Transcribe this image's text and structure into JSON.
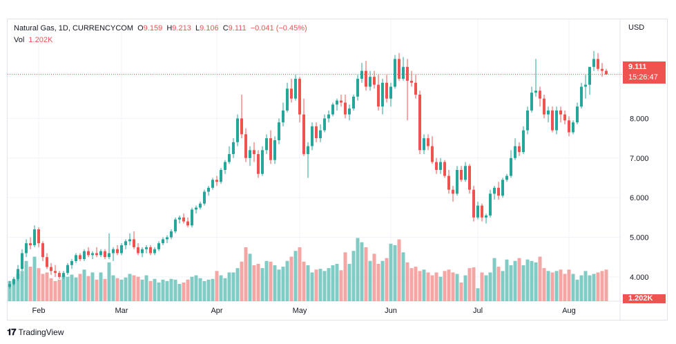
{
  "legend": {
    "symbol": "Natural Gas, 1D, CURRENCYCOM",
    "open_label": "O",
    "open": "9.159",
    "high_label": "H",
    "high": "9.213",
    "low_label": "L",
    "low": "9.106",
    "close_label": "C",
    "close": "9.111",
    "change": "−0.041 (−0.45%)",
    "vol_label": "Vol",
    "vol": "1.202K"
  },
  "axis_currency": "USD",
  "price_tag": {
    "price": "9.111",
    "countdown": "15:26:47"
  },
  "volume_tag": "1.202K",
  "branding": "TradingView",
  "colors": {
    "up": "#26a69a",
    "down": "#ef5350",
    "up_volume": "#80cbc4",
    "down_volume": "#f4a6a4",
    "grid": "#f0f3fa"
  },
  "chart_data": {
    "type": "candlestick",
    "title": "Natural Gas, 1D, CURRENCYCOM",
    "y_ticks": [
      "4.000",
      "5.000",
      "6.000",
      "7.000",
      "8.000"
    ],
    "y_tick_values": [
      4,
      5,
      6,
      7,
      8
    ],
    "ylim": [
      2.9,
      10.5
    ],
    "x_ticks": [
      {
        "label": "Feb",
        "index": 7
      },
      {
        "label": "Mar",
        "index": 27
      },
      {
        "label": "Apr",
        "index": 50
      },
      {
        "label": "May",
        "index": 70
      },
      {
        "label": "Jun",
        "index": 92
      },
      {
        "label": "Jul",
        "index": 113
      },
      {
        "label": "Aug",
        "index": 135
      }
    ],
    "last_price": 9.111,
    "ohlc": [
      [
        3.75,
        3.9,
        3.7,
        3.82
      ],
      [
        3.82,
        4.0,
        3.78,
        3.95
      ],
      [
        3.95,
        4.3,
        3.9,
        4.2
      ],
      [
        4.2,
        4.7,
        4.15,
        4.6
      ],
      [
        4.6,
        4.95,
        4.5,
        4.85
      ],
      [
        4.85,
        5.0,
        4.7,
        4.8
      ],
      [
        4.8,
        5.3,
        4.75,
        5.2
      ],
      [
        5.2,
        5.25,
        4.75,
        4.85
      ],
      [
        4.85,
        4.9,
        4.4,
        4.5
      ],
      [
        4.5,
        4.6,
        4.2,
        4.25
      ],
      [
        4.25,
        4.35,
        4.05,
        4.15
      ],
      [
        4.15,
        4.3,
        4.0,
        4.1
      ],
      [
        4.1,
        4.15,
        3.95,
        4.0
      ],
      [
        4.0,
        4.15,
        3.95,
        4.1
      ],
      [
        4.1,
        4.35,
        4.05,
        4.3
      ],
      [
        4.3,
        4.45,
        4.2,
        4.4
      ],
      [
        4.4,
        4.6,
        4.35,
        4.55
      ],
      [
        4.55,
        4.6,
        4.4,
        4.45
      ],
      [
        4.45,
        4.7,
        4.4,
        4.65
      ],
      [
        4.65,
        4.75,
        4.5,
        4.55
      ],
      [
        4.55,
        4.65,
        4.45,
        4.6
      ],
      [
        4.6,
        4.75,
        4.5,
        4.55
      ],
      [
        4.55,
        4.7,
        4.5,
        4.65
      ],
      [
        4.65,
        4.7,
        4.45,
        4.5
      ],
      [
        4.5,
        5.1,
        4.45,
        4.6
      ],
      [
        4.6,
        4.75,
        4.4,
        4.7
      ],
      [
        4.7,
        4.8,
        4.55,
        4.6
      ],
      [
        4.6,
        4.85,
        4.55,
        4.8
      ],
      [
        4.8,
        4.95,
        4.7,
        4.9
      ],
      [
        4.9,
        5.1,
        4.8,
        4.95
      ],
      [
        4.95,
        5.15,
        4.7,
        4.75
      ],
      [
        4.75,
        4.85,
        4.55,
        4.6
      ],
      [
        4.6,
        4.75,
        4.5,
        4.7
      ],
      [
        4.7,
        4.8,
        4.6,
        4.75
      ],
      [
        4.75,
        4.8,
        4.55,
        4.6
      ],
      [
        4.6,
        4.75,
        4.55,
        4.7
      ],
      [
        4.7,
        4.9,
        4.65,
        4.85
      ],
      [
        4.85,
        5.0,
        4.8,
        4.95
      ],
      [
        4.95,
        5.05,
        4.85,
        5.0
      ],
      [
        5.0,
        5.2,
        4.95,
        5.15
      ],
      [
        5.15,
        5.5,
        5.1,
        5.45
      ],
      [
        5.45,
        5.55,
        5.35,
        5.5
      ],
      [
        5.5,
        5.6,
        5.35,
        5.4
      ],
      [
        5.4,
        5.5,
        5.25,
        5.3
      ],
      [
        5.3,
        5.75,
        5.25,
        5.7
      ],
      [
        5.7,
        5.8,
        5.6,
        5.75
      ],
      [
        5.75,
        5.9,
        5.7,
        5.85
      ],
      [
        5.85,
        6.2,
        5.8,
        6.15
      ],
      [
        6.15,
        6.3,
        6.05,
        6.25
      ],
      [
        6.25,
        6.5,
        6.2,
        6.45
      ],
      [
        6.45,
        6.55,
        6.3,
        6.4
      ],
      [
        6.4,
        6.75,
        6.35,
        6.7
      ],
      [
        6.7,
        6.95,
        6.6,
        6.9
      ],
      [
        6.9,
        7.3,
        6.85,
        7.1
      ],
      [
        7.1,
        7.5,
        7.0,
        7.4
      ],
      [
        7.4,
        8.1,
        7.3,
        8.0
      ],
      [
        8.0,
        8.6,
        7.5,
        7.6
      ],
      [
        7.6,
        7.75,
        6.9,
        7.0
      ],
      [
        7.0,
        7.3,
        6.8,
        7.2
      ],
      [
        7.2,
        7.4,
        6.9,
        7.1
      ],
      [
        7.1,
        7.2,
        6.5,
        6.6
      ],
      [
        6.6,
        7.3,
        6.55,
        7.2
      ],
      [
        7.2,
        7.6,
        7.1,
        7.5
      ],
      [
        7.5,
        7.7,
        6.85,
        6.95
      ],
      [
        6.95,
        7.55,
        6.85,
        7.45
      ],
      [
        7.45,
        8.0,
        7.35,
        7.9
      ],
      [
        7.9,
        8.4,
        7.8,
        8.2
      ],
      [
        8.2,
        8.9,
        8.15,
        8.75
      ],
      [
        8.75,
        9.0,
        8.4,
        8.5
      ],
      [
        8.5,
        9.1,
        8.45,
        9.0
      ],
      [
        9.0,
        9.05,
        7.9,
        8.1
      ],
      [
        8.1,
        8.5,
        7.05,
        7.1
      ],
      [
        7.1,
        7.4,
        6.5,
        7.3
      ],
      [
        7.3,
        7.9,
        7.2,
        7.8
      ],
      [
        7.8,
        7.9,
        7.4,
        7.5
      ],
      [
        7.5,
        7.85,
        7.4,
        7.7
      ],
      [
        7.7,
        8.1,
        7.65,
        8.0
      ],
      [
        8.0,
        8.2,
        7.9,
        8.1
      ],
      [
        8.1,
        8.4,
        8.05,
        8.35
      ],
      [
        8.35,
        8.5,
        8.2,
        8.45
      ],
      [
        8.45,
        8.6,
        8.3,
        8.4
      ],
      [
        8.4,
        8.6,
        8.0,
        8.1
      ],
      [
        8.1,
        8.35,
        7.95,
        8.25
      ],
      [
        8.25,
        8.6,
        8.2,
        8.55
      ],
      [
        8.55,
        9.1,
        8.45,
        9.0
      ],
      [
        9.0,
        9.4,
        8.9,
        9.2
      ],
      [
        9.2,
        9.45,
        8.7,
        8.8
      ],
      [
        8.8,
        9.2,
        8.7,
        9.05
      ],
      [
        9.05,
        9.2,
        8.75,
        8.85
      ],
      [
        8.85,
        9.1,
        8.2,
        8.3
      ],
      [
        8.3,
        9.0,
        8.1,
        8.9
      ],
      [
        8.9,
        9.1,
        8.4,
        8.5
      ],
      [
        8.5,
        8.9,
        8.3,
        8.8
      ],
      [
        8.8,
        9.6,
        8.75,
        9.5
      ],
      [
        9.5,
        9.65,
        8.95,
        9.0
      ],
      [
        9.0,
        9.55,
        8.95,
        9.3
      ],
      [
        9.3,
        9.5,
        7.95,
        8.95
      ],
      [
        8.95,
        9.2,
        8.8,
        8.9
      ],
      [
        8.9,
        9.1,
        8.5,
        8.6
      ],
      [
        8.6,
        8.7,
        7.1,
        7.2
      ],
      [
        7.2,
        7.6,
        7.1,
        7.5
      ],
      [
        7.5,
        7.6,
        7.2,
        7.3
      ],
      [
        7.3,
        7.55,
        6.85,
        6.9
      ],
      [
        6.9,
        7.0,
        6.6,
        6.7
      ],
      [
        6.7,
        7.0,
        6.6,
        6.9
      ],
      [
        6.9,
        6.95,
        6.5,
        6.55
      ],
      [
        6.55,
        6.7,
        6.1,
        6.2
      ],
      [
        6.2,
        6.3,
        5.9,
        6.1
      ],
      [
        6.1,
        6.8,
        6.05,
        6.7
      ],
      [
        6.7,
        6.8,
        6.4,
        6.45
      ],
      [
        6.45,
        6.9,
        6.4,
        6.8
      ],
      [
        6.8,
        6.85,
        6.1,
        6.2
      ],
      [
        6.2,
        6.3,
        5.4,
        5.5
      ],
      [
        5.5,
        5.9,
        5.45,
        5.8
      ],
      [
        5.8,
        5.85,
        5.4,
        5.5
      ],
      [
        5.5,
        5.6,
        5.35,
        5.55
      ],
      [
        5.55,
        6.2,
        5.5,
        6.1
      ],
      [
        6.1,
        6.3,
        5.95,
        6.25
      ],
      [
        6.25,
        6.4,
        5.95,
        6.05
      ],
      [
        6.05,
        6.5,
        6.0,
        6.45
      ],
      [
        6.45,
        6.6,
        6.4,
        6.55
      ],
      [
        6.55,
        7.2,
        6.5,
        7.0
      ],
      [
        7.0,
        7.5,
        6.95,
        7.3
      ],
      [
        7.3,
        7.4,
        7.05,
        7.15
      ],
      [
        7.15,
        7.8,
        7.1,
        7.7
      ],
      [
        7.7,
        8.3,
        7.6,
        8.2
      ],
      [
        8.2,
        8.8,
        8.15,
        8.65
      ],
      [
        8.65,
        9.5,
        8.55,
        8.7
      ],
      [
        8.7,
        8.8,
        8.3,
        8.5
      ],
      [
        8.5,
        8.6,
        8.0,
        8.1
      ],
      [
        8.1,
        8.3,
        7.9,
        8.2
      ],
      [
        8.2,
        8.3,
        7.65,
        7.7
      ],
      [
        7.7,
        8.3,
        7.6,
        8.2
      ],
      [
        8.2,
        8.3,
        7.9,
        8.1
      ],
      [
        8.1,
        8.2,
        7.85,
        7.95
      ],
      [
        7.95,
        8.05,
        7.55,
        7.65
      ],
      [
        7.65,
        7.95,
        7.6,
        7.9
      ],
      [
        7.9,
        8.4,
        7.85,
        8.3
      ],
      [
        8.3,
        8.9,
        8.25,
        8.8
      ],
      [
        8.8,
        9.1,
        8.5,
        8.85
      ],
      [
        8.85,
        9.3,
        8.6,
        9.3
      ],
      [
        9.3,
        9.7,
        9.2,
        9.5
      ],
      [
        9.5,
        9.65,
        9.2,
        9.25
      ],
      [
        9.25,
        9.4,
        9.05,
        9.2
      ],
      [
        9.2,
        9.25,
        9.1,
        9.11
      ]
    ],
    "volume_relative": [
      0.28,
      0.3,
      0.38,
      0.42,
      0.56,
      0.48,
      0.62,
      0.46,
      0.38,
      0.4,
      0.32,
      0.28,
      0.3,
      0.36,
      0.34,
      0.37,
      0.33,
      0.38,
      0.44,
      0.35,
      0.4,
      0.3,
      0.4,
      0.31,
      0.54,
      0.36,
      0.32,
      0.3,
      0.33,
      0.38,
      0.36,
      0.34,
      0.3,
      0.36,
      0.28,
      0.31,
      0.26,
      0.3,
      0.28,
      0.31,
      0.3,
      0.24,
      0.26,
      0.3,
      0.34,
      0.36,
      0.32,
      0.28,
      0.3,
      0.31,
      0.42,
      0.36,
      0.32,
      0.4,
      0.4,
      0.46,
      0.55,
      0.75,
      0.66,
      0.5,
      0.52,
      0.46,
      0.56,
      0.55,
      0.5,
      0.44,
      0.48,
      0.56,
      0.62,
      0.7,
      0.75,
      0.55,
      0.5,
      0.4,
      0.44,
      0.45,
      0.42,
      0.46,
      0.5,
      0.52,
      0.43,
      0.68,
      0.52,
      0.7,
      0.88,
      0.82,
      0.75,
      0.56,
      0.66,
      0.52,
      0.56,
      0.6,
      0.8,
      0.78,
      0.86,
      0.68,
      0.54,
      0.46,
      0.48,
      0.42,
      0.44,
      0.4,
      0.36,
      0.4,
      0.34,
      0.42,
      0.44,
      0.4,
      0.38,
      0.26,
      0.36,
      0.46,
      0.47,
      0.18,
      0.4,
      0.36,
      0.4,
      0.6,
      0.48,
      0.42,
      0.58,
      0.5,
      0.56,
      0.6,
      0.5,
      0.58,
      0.56,
      0.54,
      0.62,
      0.46,
      0.42,
      0.4,
      0.42,
      0.44,
      0.38,
      0.44,
      0.38,
      0.3,
      0.36,
      0.42,
      0.36,
      0.38,
      0.4,
      0.42,
      0.44
    ]
  }
}
